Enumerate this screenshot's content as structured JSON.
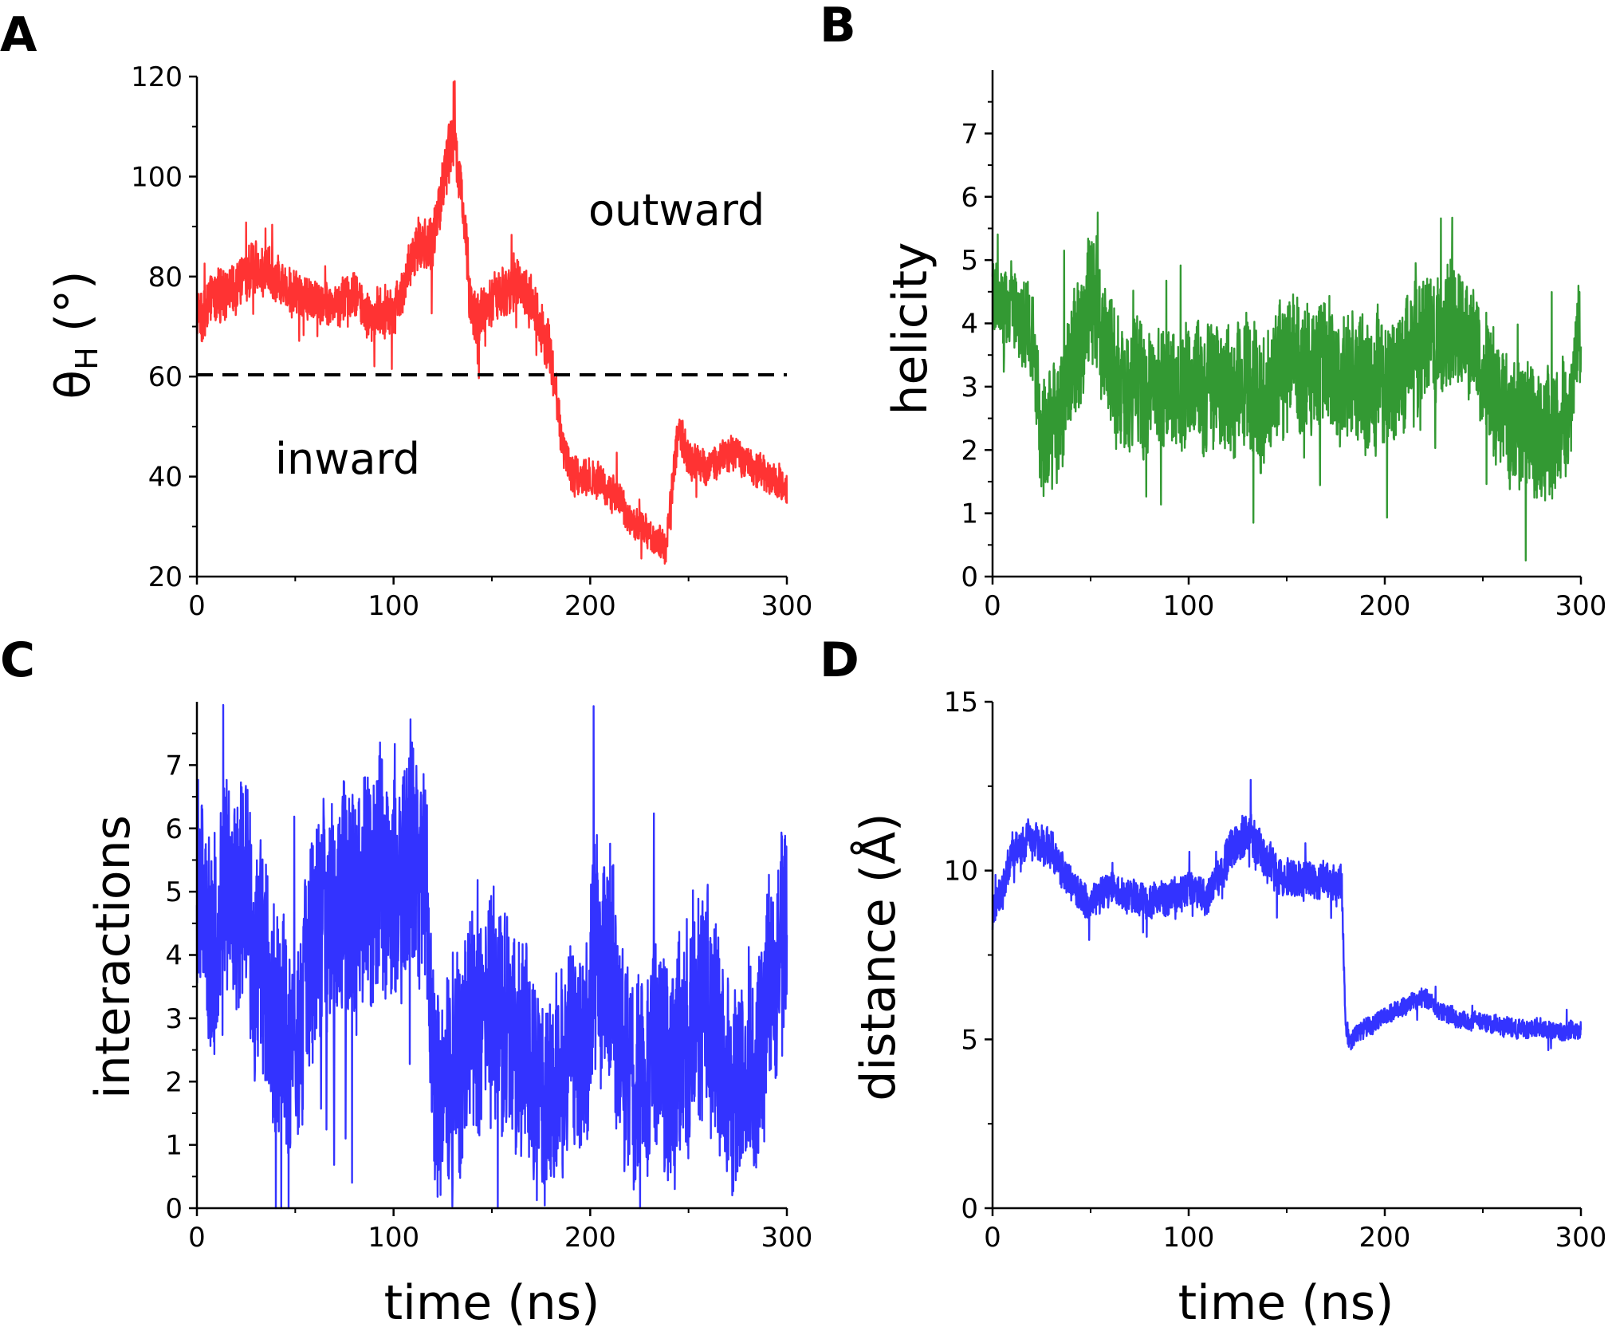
{
  "panel_letters": [
    "A",
    "B",
    "C",
    "D"
  ],
  "annotations": {
    "outward": "outward",
    "inward": "inward"
  },
  "chart_data": [
    {
      "panel": "A",
      "type": "line",
      "ylabel": "θH (°)",
      "ylabel_main": "θ",
      "ylabel_sub": "H",
      "ylabel_rest": " (°)",
      "xlabel": "",
      "xlim": [
        0,
        300
      ],
      "ylim": [
        20,
        120
      ],
      "xticks": [
        0,
        100,
        200,
        300
      ],
      "yticks": [
        20,
        40,
        60,
        80,
        100,
        120
      ],
      "color": "#ff3333",
      "threshold": 60,
      "x": [
        0,
        10,
        20,
        30,
        40,
        50,
        60,
        70,
        80,
        90,
        100,
        110,
        120,
        125,
        130,
        135,
        140,
        150,
        160,
        170,
        180,
        185,
        190,
        200,
        210,
        220,
        230,
        238,
        245,
        250,
        260,
        270,
        280,
        290,
        300
      ],
      "y": [
        72,
        76,
        78,
        82,
        80,
        77,
        75,
        74,
        76,
        72,
        73,
        84,
        88,
        98,
        108,
        96,
        70,
        75,
        78,
        76,
        64,
        48,
        40,
        40,
        38,
        32,
        28,
        25,
        50,
        44,
        42,
        44,
        43,
        40,
        38
      ],
      "noise": [
        9,
        9,
        9,
        9,
        8,
        8,
        8,
        8,
        8,
        8,
        8,
        9,
        10,
        11,
        11,
        10,
        10,
        9,
        9,
        9,
        9,
        8,
        7,
        7,
        6,
        6,
        6,
        6,
        7,
        7,
        6,
        6,
        6,
        6,
        6
      ],
      "ymin_clip": 20,
      "ymax_clip": 120
    },
    {
      "panel": "B",
      "type": "line",
      "ylabel": "helicity",
      "xlabel": "",
      "xlim": [
        0,
        300
      ],
      "ylim": [
        0,
        8
      ],
      "xticks": [
        0,
        100,
        200,
        300
      ],
      "yticks": [
        0,
        1,
        2,
        3,
        4,
        5,
        6,
        7
      ],
      "color": "#339933",
      "x": [
        0,
        10,
        20,
        25,
        35,
        50,
        60,
        80,
        100,
        120,
        140,
        150,
        170,
        190,
        210,
        225,
        240,
        260,
        275,
        290,
        300
      ],
      "y": [
        4.4,
        4.2,
        3.8,
        2.2,
        2.6,
        4.5,
        3.2,
        2.9,
        3.1,
        3.0,
        2.8,
        3.5,
        3.2,
        3.0,
        3.4,
        3.9,
        4.0,
        2.6,
        2.3,
        2.2,
        3.9
      ],
      "noise": [
        1.1,
        1.1,
        1.3,
        1.6,
        1.8,
        1.8,
        1.7,
        1.8,
        1.7,
        1.8,
        1.8,
        1.9,
        1.8,
        1.8,
        1.7,
        1.8,
        1.7,
        1.8,
        1.8,
        1.8,
        1.4
      ],
      "ymin_clip": 0.15,
      "ymax_clip": 6.45
    },
    {
      "panel": "C",
      "type": "line",
      "ylabel": "interactions",
      "xlabel": "time (ns)",
      "xlim": [
        0,
        300
      ],
      "ylim": [
        0,
        8
      ],
      "xticks": [
        0,
        100,
        200,
        300
      ],
      "yticks": [
        0,
        1,
        2,
        3,
        4,
        5,
        6,
        7
      ],
      "color": "#3333ff",
      "x": [
        0,
        10,
        20,
        40,
        50,
        60,
        80,
        100,
        115,
        122,
        130,
        150,
        170,
        180,
        200,
        210,
        220,
        240,
        260,
        270,
        285,
        300
      ],
      "y": [
        5.0,
        4.0,
        5.2,
        3.0,
        2.5,
        4.5,
        4.8,
        5.2,
        5.5,
        1.8,
        2.0,
        3.2,
        2.2,
        1.8,
        3.0,
        4.0,
        2.0,
        2.4,
        3.2,
        2.0,
        2.2,
        4.8
      ],
      "noise": [
        3.2,
        3.2,
        3.2,
        3.2,
        3.2,
        3.2,
        3.2,
        3.2,
        3.2,
        2.8,
        3.0,
        3.2,
        3.0,
        2.6,
        3.2,
        3.2,
        2.8,
        3.0,
        3.2,
        3.0,
        3.0,
        3.2
      ],
      "ymin_clip": 0,
      "ymax_clip": 7.95
    },
    {
      "panel": "D",
      "type": "line",
      "ylabel": "distance (Å)",
      "xlabel": "time (ns)",
      "xlim": [
        0,
        300
      ],
      "ylim": [
        0,
        15
      ],
      "xticks": [
        0,
        100,
        200,
        300
      ],
      "yticks": [
        0,
        5,
        10,
        15
      ],
      "color": "#3333ff",
      "x": [
        0,
        5,
        10,
        20,
        30,
        40,
        50,
        60,
        70,
        80,
        90,
        100,
        110,
        120,
        130,
        140,
        150,
        160,
        170,
        178,
        180,
        182,
        190,
        200,
        210,
        220,
        230,
        240,
        250,
        260,
        270,
        280,
        290,
        300
      ],
      "y": [
        8.6,
        9.5,
        10.5,
        11.0,
        10.6,
        9.6,
        9.0,
        9.5,
        9.2,
        9.0,
        9.3,
        9.4,
        9.2,
        10.5,
        11.2,
        10.2,
        9.8,
        9.8,
        9.6,
        9.6,
        5.5,
        5.0,
        5.3,
        5.7,
        6.0,
        6.2,
        5.8,
        5.6,
        5.5,
        5.4,
        5.3,
        5.3,
        5.2,
        5.3
      ],
      "noise": [
        0.8,
        0.9,
        1.0,
        1.0,
        1.0,
        0.9,
        0.9,
        0.9,
        0.9,
        0.9,
        0.9,
        0.9,
        0.9,
        1.1,
        1.3,
        1.1,
        1.0,
        1.0,
        1.0,
        1.0,
        0.6,
        0.5,
        0.5,
        0.5,
        0.5,
        0.5,
        0.5,
        0.5,
        0.5,
        0.5,
        0.5,
        0.5,
        0.5,
        0.5
      ],
      "ymin_clip": 3.9,
      "ymax_clip": 14.9
    }
  ]
}
